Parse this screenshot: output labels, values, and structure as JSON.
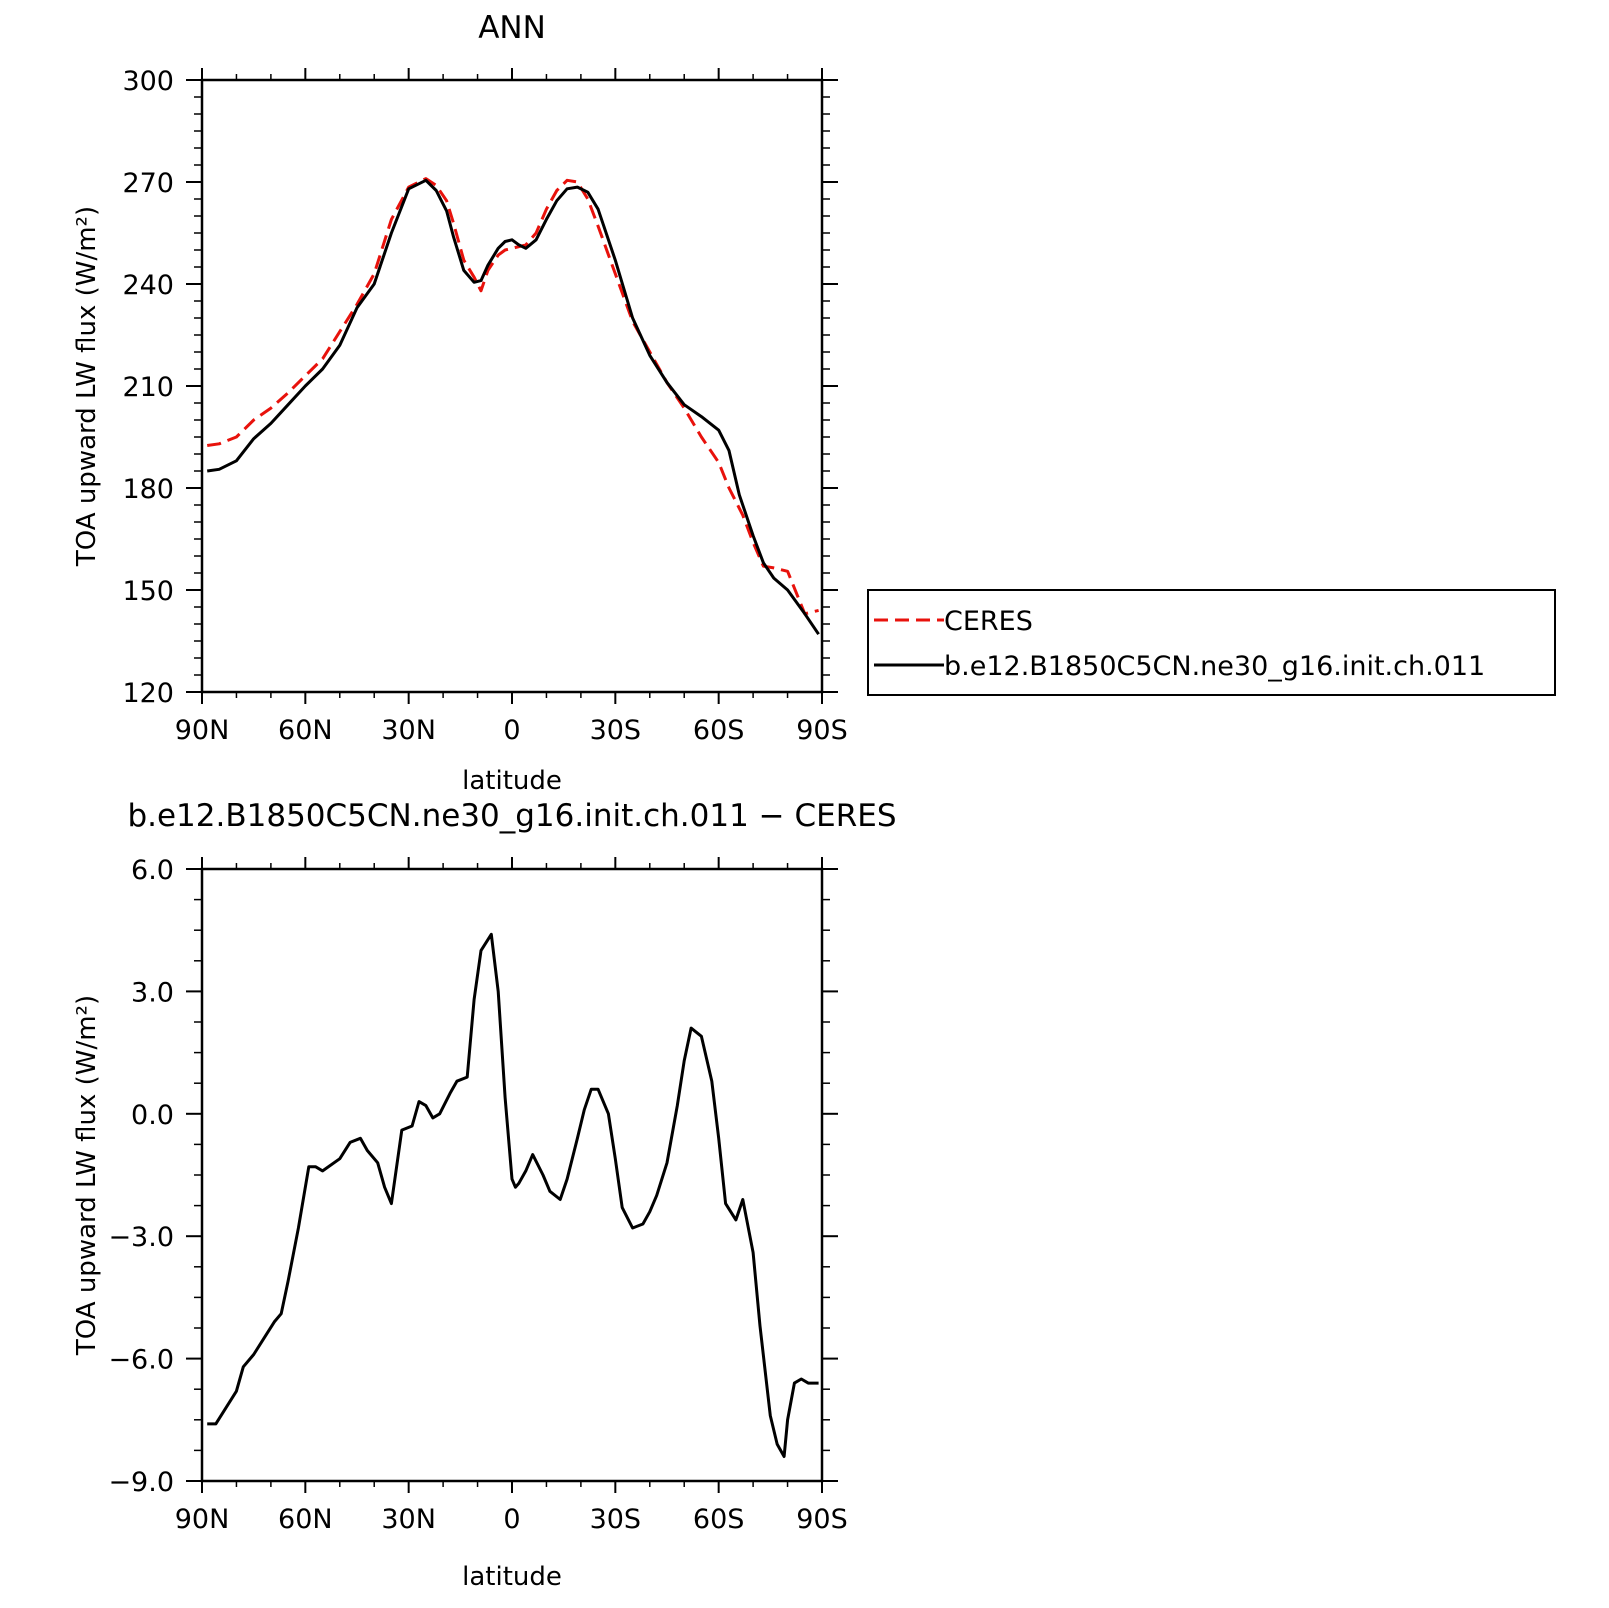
{
  "chart_data": [
    {
      "type": "line",
      "title": "ANN",
      "xlabel": "latitude",
      "ylabel": "TOA upward LW flux (W/m²)",
      "xlim": [
        90,
        -90
      ],
      "ylim": [
        120,
        300
      ],
      "xticks": [
        90,
        60,
        30,
        0,
        -30,
        -60,
        -90
      ],
      "xtick_labels": [
        "90N",
        "60N",
        "30N",
        "0",
        "30S",
        "60S",
        "90S"
      ],
      "yticks": [
        120,
        150,
        180,
        210,
        240,
        270,
        300
      ],
      "ytick_labels": [
        "120",
        "150",
        "180",
        "210",
        "240",
        "270",
        "300"
      ],
      "legend_position": "right",
      "series": [
        {
          "name": "CERES",
          "color": "#e8120c",
          "dash": "dashed",
          "x": [
            88.5,
            85,
            80,
            75,
            70,
            65,
            60,
            55,
            50,
            45,
            40,
            35,
            30,
            25,
            22,
            19,
            17,
            14,
            11,
            9,
            7,
            4,
            2,
            0,
            -4,
            -7,
            -10,
            -13,
            -16,
            -19,
            -22,
            -25,
            -30,
            -35,
            -40,
            -45,
            -50,
            -55,
            -60,
            -63,
            -67,
            -70,
            -73,
            -76,
            -80,
            -85,
            -89
          ],
          "y": [
            192.5,
            193,
            195,
            200,
            203.5,
            208,
            213,
            218,
            226,
            234,
            243,
            259,
            268.5,
            271,
            269,
            264.5,
            258,
            247,
            242,
            238,
            244,
            248.5,
            250,
            250.5,
            251.5,
            255,
            262,
            267.5,
            270.5,
            270,
            265,
            257,
            243,
            229,
            220,
            211,
            203.5,
            195,
            187.5,
            180,
            172,
            164,
            157,
            156.5,
            155.5,
            143,
            144
          ]
        },
        {
          "name": "b.e12.B1850C5CN.ne30_g16.init.ch.011",
          "color": "#000000",
          "dash": "solid",
          "x": [
            88.5,
            85,
            80,
            75,
            70,
            65,
            60,
            55,
            50,
            45,
            40,
            35,
            30,
            25,
            22,
            19,
            17,
            14,
            11,
            9,
            7,
            4,
            2,
            0,
            -2,
            -4,
            -7,
            -10,
            -13,
            -16,
            -19,
            -22,
            -25,
            -30,
            -35,
            -40,
            -45,
            -50,
            -55,
            -60,
            -63,
            -66,
            -70,
            -73,
            -76,
            -80,
            -85,
            -89
          ],
          "y": [
            185,
            185.5,
            188,
            194.5,
            199,
            204.5,
            210,
            215,
            222,
            233,
            240,
            255,
            268,
            270.5,
            267.5,
            261.5,
            254,
            244,
            240.5,
            241,
            245.5,
            250.5,
            252.5,
            253,
            251.5,
            250.5,
            253,
            259,
            264.5,
            268,
            268.5,
            267,
            262,
            247,
            230,
            219,
            211,
            204.5,
            201,
            197,
            191,
            178,
            166,
            158,
            153.5,
            150,
            143,
            137
          ]
        }
      ]
    },
    {
      "type": "line",
      "title": "b.e12.B1850C5CN.ne30_g16.init.ch.011 - CERES",
      "xlabel": "latitude",
      "ylabel": "TOA upward LW flux (W/m²)",
      "xlim": [
        90,
        -90
      ],
      "ylim": [
        -9,
        6
      ],
      "xticks": [
        90,
        60,
        30,
        0,
        -30,
        -60,
        -90
      ],
      "xtick_labels": [
        "90N",
        "60N",
        "30N",
        "0",
        "30S",
        "60S",
        "90S"
      ],
      "yticks": [
        -9,
        -6,
        -3,
        0,
        3,
        6
      ],
      "ytick_labels": [
        "-9.0",
        "-6.0",
        "-3.0",
        "0.0",
        "3.0",
        "6.0"
      ],
      "series": [
        {
          "color": "#000000",
          "dash": "solid",
          "x": [
            88.5,
            86,
            83,
            80,
            78,
            75,
            72,
            69,
            67,
            65,
            62,
            59,
            57,
            55,
            50,
            47,
            44,
            42,
            39,
            37,
            35,
            32,
            29,
            27,
            25,
            23,
            21,
            18,
            16,
            13,
            11,
            9,
            6,
            4,
            2,
            0,
            -1,
            -2,
            -4,
            -6,
            -9,
            -11,
            -14,
            -16,
            -19,
            -21,
            -23,
            -25,
            -28,
            -30,
            -32,
            -35,
            -38,
            -40,
            -42,
            -45,
            -48,
            -50,
            -52,
            -55,
            -58,
            -60,
            -62,
            -65,
            -67,
            -70,
            -72,
            -75,
            -77,
            -79,
            -80,
            -82,
            -84,
            -86,
            -88,
            -89
          ],
          "y": [
            -7.6,
            -7.6,
            -7.2,
            -6.8,
            -6.2,
            -5.9,
            -5.5,
            -5.1,
            -4.9,
            -4.1,
            -2.8,
            -1.3,
            -1.3,
            -1.4,
            -1.1,
            -0.7,
            -0.6,
            -0.9,
            -1.2,
            -1.8,
            -2.2,
            -0.4,
            -0.3,
            0.3,
            0.2,
            -0.1,
            0,
            0.5,
            0.8,
            0.9,
            2.8,
            4.0,
            4.4,
            3.0,
            0.4,
            -1.6,
            -1.8,
            -1.7,
            -1.4,
            -1.0,
            -1.5,
            -1.9,
            -2.1,
            -1.6,
            -0.6,
            0.1,
            0.6,
            0.6,
            0,
            -1.1,
            -2.3,
            -2.8,
            -2.7,
            -2.4,
            -2.0,
            -1.2,
            0.2,
            1.3,
            2.1,
            1.9,
            0.8,
            -0.6,
            -2.2,
            -2.6,
            -2.1,
            -3.4,
            -5.2,
            -7.4,
            -8.1,
            -8.4,
            -7.5,
            -6.6,
            -6.5,
            -6.6,
            -6.6,
            -6.6
          ]
        }
      ]
    }
  ]
}
